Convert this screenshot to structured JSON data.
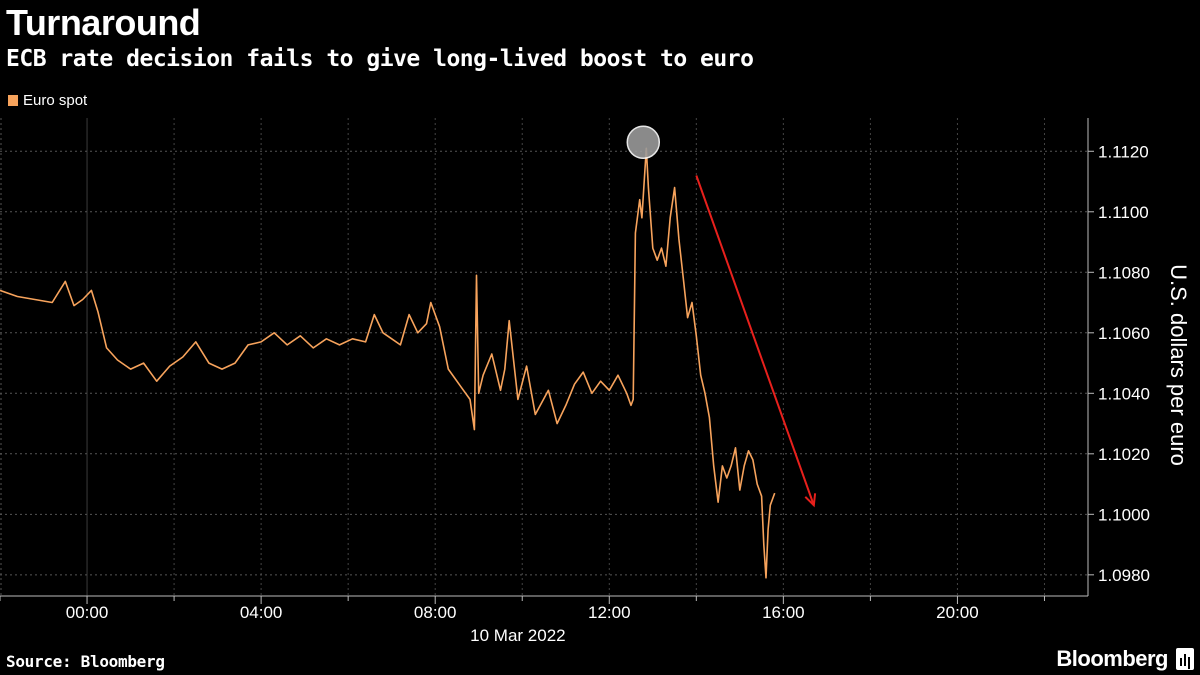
{
  "header": {
    "title": "Turnaround",
    "subtitle": "ECB rate decision fails to give long-lived boost to euro"
  },
  "footer": {
    "source": "Source: Bloomberg",
    "brand": "Bloomberg"
  },
  "colors": {
    "background": "#000000",
    "series": "#f7a35c",
    "arrow": "#e8201c",
    "grid": "#555555",
    "marker": "#9a9a9a"
  },
  "chart_data": {
    "type": "line",
    "title": "Turnaround",
    "subtitle": "ECB rate decision fails to give long-lived boost to euro",
    "xlabel": "10 Mar 2022",
    "ylabel": "U.S. dollars per euro",
    "x_ticks": [
      "00:00",
      "04:00",
      "08:00",
      "12:00",
      "16:00",
      "20:00"
    ],
    "x_tick_hours": [
      0,
      4,
      8,
      12,
      16,
      20
    ],
    "xlim_hours": [
      -2,
      23
    ],
    "y_ticks": [
      "1.0980",
      "1.1000",
      "1.1020",
      "1.1040",
      "1.1060",
      "1.1080",
      "1.1100",
      "1.1120"
    ],
    "ylim": [
      1.0973,
      1.1131
    ],
    "grid": true,
    "legend_position": "top-left",
    "series": [
      {
        "name": "Euro spot",
        "x_hours": [
          -2.0,
          -1.6,
          -1.2,
          -0.8,
          -0.5,
          -0.3,
          -0.1,
          0.1,
          0.25,
          0.45,
          0.7,
          1.0,
          1.3,
          1.6,
          1.9,
          2.2,
          2.5,
          2.8,
          3.1,
          3.4,
          3.7,
          4.0,
          4.3,
          4.6,
          4.9,
          5.2,
          5.5,
          5.8,
          6.1,
          6.4,
          6.6,
          6.8,
          7.0,
          7.2,
          7.4,
          7.6,
          7.8,
          7.9,
          8.1,
          8.3,
          8.6,
          8.8,
          8.9,
          8.95,
          9.0,
          9.1,
          9.3,
          9.5,
          9.6,
          9.7,
          9.9,
          10.1,
          10.3,
          10.6,
          10.8,
          11.0,
          11.2,
          11.4,
          11.6,
          11.8,
          12.0,
          12.2,
          12.4,
          12.5,
          12.55,
          12.6,
          12.7,
          12.75,
          12.85,
          12.9,
          13.0,
          13.1,
          13.2,
          13.3,
          13.4,
          13.5,
          13.6,
          13.7,
          13.8,
          13.9,
          14.0,
          14.1,
          14.2,
          14.3,
          14.4,
          14.5,
          14.6,
          14.7,
          14.8,
          14.9,
          15.0,
          15.1,
          15.2,
          15.3,
          15.4,
          15.5,
          15.55,
          15.6,
          15.65,
          15.7,
          15.8
        ],
        "values": [
          1.1074,
          1.1072,
          1.1071,
          1.107,
          1.1077,
          1.1069,
          1.1071,
          1.1074,
          1.1067,
          1.1055,
          1.1051,
          1.1048,
          1.105,
          1.1044,
          1.1049,
          1.1052,
          1.1057,
          1.105,
          1.1048,
          1.105,
          1.1056,
          1.1057,
          1.106,
          1.1056,
          1.1059,
          1.1055,
          1.1058,
          1.1056,
          1.1058,
          1.1057,
          1.1066,
          1.106,
          1.1058,
          1.1056,
          1.1066,
          1.106,
          1.1063,
          1.107,
          1.1062,
          1.1048,
          1.1042,
          1.1038,
          1.1028,
          1.1079,
          1.104,
          1.1046,
          1.1053,
          1.1041,
          1.1048,
          1.1064,
          1.1038,
          1.1049,
          1.1033,
          1.1041,
          1.103,
          1.1036,
          1.1043,
          1.1047,
          1.104,
          1.1044,
          1.1041,
          1.1046,
          1.104,
          1.1036,
          1.1038,
          1.1093,
          1.1104,
          1.1098,
          1.1121,
          1.1108,
          1.1088,
          1.1084,
          1.1088,
          1.1082,
          1.1098,
          1.1108,
          1.1091,
          1.1078,
          1.1065,
          1.107,
          1.1059,
          1.1046,
          1.104,
          1.1032,
          1.1016,
          1.1004,
          1.1016,
          1.1012,
          1.1016,
          1.1022,
          1.1008,
          1.1016,
          1.1021,
          1.1018,
          1.101,
          1.1006,
          1.099,
          1.0979,
          1.0995,
          1.1003,
          1.1007
        ]
      }
    ],
    "annotations": {
      "peak_marker": {
        "x_hours": 12.85,
        "value": 1.1121
      },
      "trend_arrow": {
        "from": {
          "x_hours": 14.0,
          "value": 1.1112
        },
        "to": {
          "x_hours": 16.7,
          "value": 1.1003
        }
      }
    }
  }
}
